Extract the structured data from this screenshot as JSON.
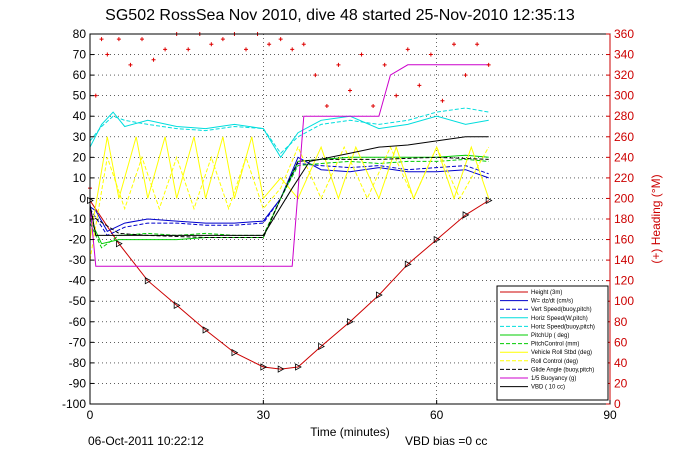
{
  "chart_data": {
    "type": "line",
    "title": "SG502 RossSea Nov 2010, dive 48 started 25-Nov-2010 12:35:13",
    "xlabel": "Time (minutes)",
    "ylabel_right": "(+) Heading (°M)",
    "footer_left": "06-Oct-2011 10:22:12",
    "footer_right": "VBD bias =0 cc",
    "xlim": [
      0,
      90
    ],
    "ylim": [
      -100,
      80
    ],
    "ylim_right": [
      0,
      360
    ],
    "x_ticks": [
      0,
      30,
      60,
      90
    ],
    "y_ticks": [
      -100,
      -90,
      -80,
      -70,
      -60,
      -50,
      -40,
      -30,
      -20,
      -10,
      0,
      10,
      20,
      30,
      40,
      50,
      60,
      70,
      80
    ],
    "y_ticks_right": [
      0,
      20,
      40,
      60,
      80,
      100,
      120,
      140,
      160,
      180,
      200,
      220,
      240,
      260,
      280,
      300,
      320,
      340,
      360
    ],
    "grid": true,
    "legend_position": "lower-right",
    "colors": {
      "heading": "#dd0000",
      "height": "#cc0000",
      "w": "#0000cc",
      "horiz": "#00dddd",
      "pitch": "#00cc00",
      "roll": "#ffff00",
      "buoyancy": "#cc00cc",
      "vbd": "#000000"
    },
    "series": [
      {
        "name": "Height (3m)",
        "color": "#cc0000",
        "style": "solid",
        "x": [
          0,
          5,
          10,
          15,
          20,
          25,
          30,
          33,
          36,
          40,
          45,
          50,
          55,
          60,
          65,
          69
        ],
        "y": [
          -1,
          -22,
          -40,
          -52,
          -64,
          -75,
          -82,
          -83,
          -82,
          -72,
          -60,
          -47,
          -32,
          -20,
          -8,
          -1
        ]
      },
      {
        "name": "W= dz/dt (cm/s)",
        "color": "#0000cc",
        "style": "solid",
        "x": [
          0,
          1,
          3,
          6,
          10,
          15,
          20,
          25,
          30,
          33,
          36,
          40,
          45,
          50,
          55,
          60,
          65,
          69
        ],
        "y": [
          -4,
          -6,
          -16,
          -12,
          -10,
          -11,
          -12,
          -12,
          -11,
          0,
          20,
          14,
          13,
          15,
          13,
          13,
          14,
          10
        ]
      },
      {
        "name": "Vert Speed(buoy,pitch)",
        "color": "#0000cc",
        "style": "dashed",
        "x": [
          0,
          3,
          6,
          10,
          15,
          20,
          25,
          30,
          33,
          36,
          40,
          45,
          50,
          55,
          60,
          65,
          69
        ],
        "y": [
          -5,
          -18,
          -14,
          -12,
          -12,
          -13,
          -13,
          -12,
          0,
          17,
          16,
          15,
          16,
          14,
          15,
          16,
          12
        ]
      },
      {
        "name": "Horiz Speed(W,pitch)",
        "color": "#00dddd",
        "style": "solid",
        "x": [
          0,
          2,
          4,
          6,
          10,
          15,
          20,
          25,
          30,
          33,
          36,
          40,
          45,
          50,
          55,
          60,
          65,
          69
        ],
        "y": [
          25,
          36,
          42,
          35,
          38,
          35,
          34,
          36,
          34,
          20,
          32,
          38,
          40,
          34,
          36,
          40,
          36,
          38
        ]
      },
      {
        "name": "Horiz Speed(buoy,pitch)",
        "color": "#00dddd",
        "style": "dashed",
        "x": [
          0,
          2,
          4,
          6,
          10,
          15,
          20,
          25,
          30,
          33,
          36,
          40,
          45,
          50,
          55,
          60,
          65,
          69
        ],
        "y": [
          28,
          35,
          40,
          38,
          36,
          34,
          33,
          35,
          34,
          22,
          30,
          36,
          38,
          36,
          38,
          42,
          44,
          42
        ]
      },
      {
        "name": "PitchUp ( deg)",
        "color": "#00cc00",
        "style": "solid",
        "x": [
          0,
          2,
          5,
          10,
          15,
          20,
          25,
          30,
          33,
          36,
          40,
          45,
          50,
          55,
          60,
          65,
          69
        ],
        "y": [
          -10,
          -22,
          -20,
          -20,
          -20,
          -19,
          -19,
          -19,
          0,
          18,
          19,
          20,
          20,
          20,
          20,
          21,
          20
        ]
      },
      {
        "name": "PitchControl (mm)",
        "color": "#00cc00",
        "style": "dashed",
        "x": [
          0,
          2,
          5,
          10,
          15,
          20,
          25,
          30,
          33,
          36,
          40,
          45,
          50,
          55,
          60,
          65,
          69
        ],
        "y": [
          -12,
          -24,
          -18,
          -17,
          -18,
          -17,
          -18,
          -18,
          0,
          16,
          17,
          18,
          17,
          18,
          18,
          19,
          18
        ]
      },
      {
        "name": "Vehicle Roll Stbd (deg)",
        "color": "#ffff00",
        "style": "solid",
        "x": [
          0,
          3,
          5,
          8,
          10,
          13,
          15,
          18,
          20,
          23,
          25,
          28,
          30,
          33,
          36,
          40,
          43,
          46,
          50,
          53,
          56,
          60,
          63,
          66,
          69
        ],
        "y": [
          -20,
          30,
          0,
          30,
          0,
          30,
          0,
          30,
          0,
          30,
          0,
          30,
          0,
          10,
          0,
          25,
          0,
          25,
          0,
          25,
          0,
          25,
          0,
          25,
          0
        ]
      },
      {
        "name": "Roll Control (deg)",
        "color": "#ffff00",
        "style": "dashed",
        "x": [
          0,
          3,
          6,
          9,
          12,
          15,
          18,
          21,
          24,
          27,
          30,
          33,
          36,
          40,
          44,
          48,
          52,
          56,
          60,
          64,
          69
        ],
        "y": [
          -30,
          20,
          -5,
          20,
          -5,
          20,
          -5,
          20,
          -5,
          20,
          -5,
          5,
          25,
          0,
          25,
          0,
          25,
          0,
          25,
          0,
          25
        ]
      },
      {
        "name": "Glide Angle (buoy,pitch)",
        "color": "#000000",
        "style": "dashed",
        "x": [
          0,
          5,
          10,
          20,
          30,
          33,
          36,
          40,
          50,
          60,
          69
        ],
        "y": [
          -8,
          -17,
          -18,
          -19,
          -19,
          0,
          18,
          19,
          19,
          20,
          19
        ]
      },
      {
        "name": "1/5 Buoyancy (g)",
        "color": "#cc00cc",
        "style": "solid",
        "x": [
          0,
          1,
          35,
          37,
          40,
          45,
          50,
          52,
          55,
          60,
          65,
          69
        ],
        "y": [
          -3,
          -33,
          -33,
          40,
          40,
          40,
          40,
          60,
          65,
          65,
          65,
          65
        ]
      },
      {
        "name": "VBD ( 10 cc)",
        "color": "#000000",
        "style": "solid",
        "x": [
          0,
          1,
          30,
          35,
          38,
          45,
          50,
          55,
          60,
          65,
          69
        ],
        "y": [
          -3,
          -18,
          -18,
          5,
          18,
          22,
          25,
          26,
          28,
          30,
          30
        ]
      },
      {
        "name": "Heading",
        "color": "#dd0000",
        "style": "plus-markers",
        "axis": "right",
        "x": [
          0,
          1,
          2,
          3,
          5,
          7,
          9,
          11,
          13,
          15,
          17,
          19,
          21,
          23,
          25,
          27,
          29,
          31,
          33,
          35,
          37,
          39,
          41,
          43,
          45,
          47,
          49,
          51,
          53,
          55,
          57,
          59,
          61,
          63,
          65,
          67,
          69
        ],
        "y": [
          210,
          300,
          355,
          340,
          355,
          330,
          355,
          335,
          345,
          360,
          345,
          360,
          350,
          355,
          360,
          345,
          360,
          350,
          355,
          345,
          350,
          320,
          290,
          330,
          305,
          340,
          290,
          330,
          300,
          345,
          310,
          340,
          295,
          350,
          320,
          350,
          330
        ]
      }
    ]
  }
}
